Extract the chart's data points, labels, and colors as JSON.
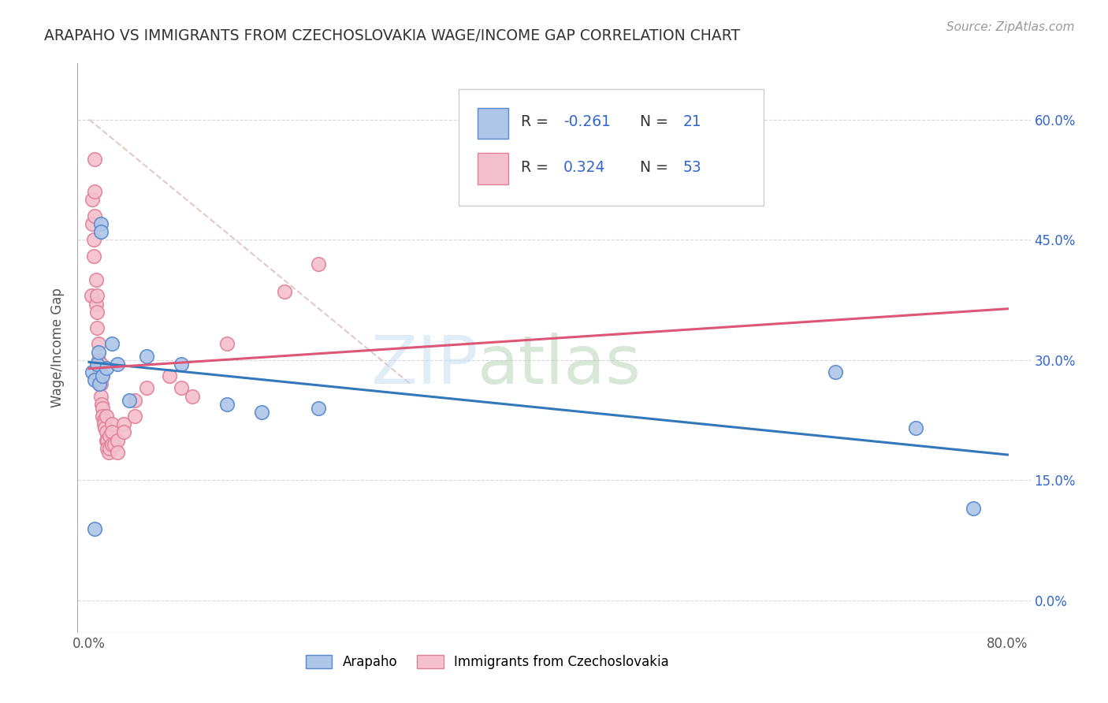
{
  "title": "ARAPAHO VS IMMIGRANTS FROM CZECHOSLOVAKIA WAGE/INCOME GAP CORRELATION CHART",
  "source": "Source: ZipAtlas.com",
  "ylabel": "Wage/Income Gap",
  "xlim": [
    -0.01,
    0.82
  ],
  "ylim": [
    -0.04,
    0.67
  ],
  "yticks": [
    0.0,
    0.15,
    0.3,
    0.45,
    0.6
  ],
  "ytick_labels": [
    "0.0%",
    "15.0%",
    "30.0%",
    "45.0%",
    "60.0%"
  ],
  "xticks": [
    0.0,
    0.2,
    0.4,
    0.6,
    0.8
  ],
  "xtick_labels": [
    "0.0%",
    "",
    "",
    "",
    "80.0%"
  ],
  "arapaho_color": "#aec6e8",
  "arapaho_edge_color": "#5588cc",
  "czecho_color": "#f4c0ce",
  "czecho_edge_color": "#e08098",
  "arapaho_line_color": "#3377bb",
  "czecho_line_color": "#dd5577",
  "czecho_dash_color": "#ddbbbb",
  "legend_R_color": "#3366cc",
  "background_color": "#ffffff",
  "grid_color": "#d8d8d8",
  "arapaho_x": [
    0.003,
    0.005,
    0.007,
    0.008,
    0.009,
    0.01,
    0.01,
    0.012,
    0.015,
    0.02,
    0.025,
    0.035,
    0.05,
    0.08,
    0.12,
    0.15,
    0.2,
    0.65,
    0.72,
    0.77,
    0.005
  ],
  "arapaho_y": [
    0.285,
    0.275,
    0.295,
    0.31,
    0.27,
    0.47,
    0.46,
    0.28,
    0.29,
    0.32,
    0.295,
    0.25,
    0.305,
    0.295,
    0.245,
    0.235,
    0.24,
    0.285,
    0.215,
    0.115,
    0.09
  ],
  "czecho_x": [
    0.002,
    0.003,
    0.003,
    0.004,
    0.004,
    0.005,
    0.005,
    0.005,
    0.006,
    0.006,
    0.007,
    0.007,
    0.007,
    0.008,
    0.008,
    0.008,
    0.009,
    0.009,
    0.01,
    0.01,
    0.01,
    0.01,
    0.011,
    0.012,
    0.012,
    0.013,
    0.013,
    0.014,
    0.015,
    0.015,
    0.015,
    0.016,
    0.016,
    0.017,
    0.018,
    0.018,
    0.02,
    0.02,
    0.02,
    0.022,
    0.025,
    0.025,
    0.03,
    0.03,
    0.04,
    0.04,
    0.05,
    0.07,
    0.08,
    0.09,
    0.12,
    0.17,
    0.2
  ],
  "czecho_y": [
    0.38,
    0.5,
    0.47,
    0.45,
    0.43,
    0.55,
    0.51,
    0.48,
    0.4,
    0.37,
    0.38,
    0.36,
    0.34,
    0.32,
    0.3,
    0.28,
    0.285,
    0.27,
    0.295,
    0.28,
    0.27,
    0.255,
    0.245,
    0.24,
    0.23,
    0.225,
    0.22,
    0.215,
    0.23,
    0.21,
    0.2,
    0.2,
    0.19,
    0.185,
    0.205,
    0.19,
    0.22,
    0.21,
    0.195,
    0.195,
    0.2,
    0.185,
    0.22,
    0.21,
    0.25,
    0.23,
    0.265,
    0.28,
    0.265,
    0.255,
    0.32,
    0.385,
    0.42
  ]
}
